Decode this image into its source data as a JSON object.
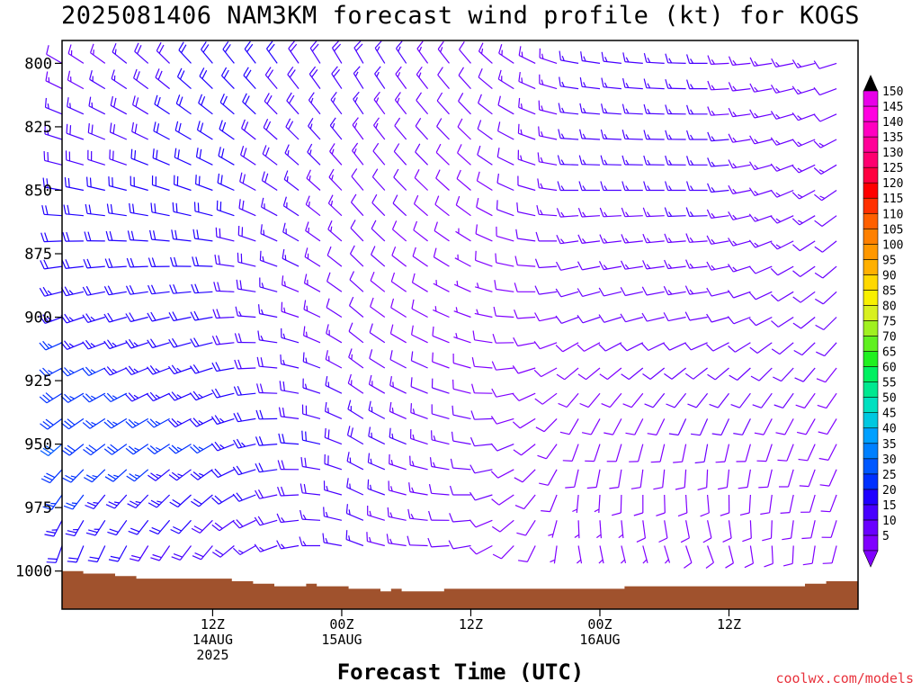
{
  "title": "2025081406 NAM3KM forecast wind profile (kt) for KOGS",
  "xlabel": "Forecast Time (UTC)",
  "credit": "coolwx.com/models",
  "chart_data": {
    "type": "wind_barb_time_height",
    "y_axis": {
      "ticks": [
        800,
        825,
        850,
        875,
        900,
        925,
        950,
        975,
        1000
      ],
      "range": [
        1015,
        791
      ],
      "unit": "hPa"
    },
    "x_axis": {
      "range_hours": [
        -8,
        66
      ],
      "ticks": [
        {
          "hour": 6,
          "lines": [
            "12Z",
            "14AUG",
            "2025"
          ]
        },
        {
          "hour": 18,
          "lines": [
            "00Z",
            "15AUG"
          ]
        },
        {
          "hour": 30,
          "lines": [
            "12Z"
          ]
        },
        {
          "hour": 42,
          "lines": [
            "00Z",
            "16AUG"
          ]
        },
        {
          "hour": 54,
          "lines": [
            "12Z"
          ]
        }
      ]
    },
    "colorbar": {
      "values": [
        5,
        10,
        15,
        20,
        25,
        30,
        35,
        40,
        45,
        50,
        55,
        60,
        65,
        70,
        75,
        80,
        85,
        90,
        95,
        100,
        105,
        110,
        115,
        120,
        125,
        130,
        135,
        140,
        145,
        150
      ],
      "colors": [
        "#8000ff",
        "#6a00ff",
        "#4800ff",
        "#2000ff",
        "#0030ff",
        "#0058ff",
        "#0080ff",
        "#00a0ff",
        "#00c8e0",
        "#00e0c0",
        "#00e890",
        "#00f060",
        "#20f020",
        "#60f020",
        "#a0f020",
        "#d8f020",
        "#f8f000",
        "#ffd800",
        "#ffb000",
        "#ff9800",
        "#ff8000",
        "#ff6000",
        "#ff3000",
        "#ff0000",
        "#ff0040",
        "#ff0070",
        "#ff0098",
        "#ff00c0",
        "#ff00e0",
        "#e800e8"
      ]
    },
    "terrain_hpa": [
      1000,
      1000,
      1001,
      1001,
      1001,
      1002,
      1002,
      1003,
      1003,
      1003,
      1003,
      1003,
      1003,
      1003,
      1003,
      1003,
      1004,
      1004,
      1005,
      1005,
      1006,
      1006,
      1006,
      1005,
      1006,
      1006,
      1006,
      1007,
      1007,
      1007,
      1008,
      1007,
      1008,
      1008,
      1008,
      1008,
      1007,
      1007,
      1007,
      1007,
      1007,
      1007,
      1007,
      1007,
      1007,
      1007,
      1007,
      1007,
      1007,
      1007,
      1007,
      1007,
      1007,
      1006,
      1006,
      1006,
      1006,
      1006,
      1006,
      1006,
      1006,
      1006,
      1006,
      1006,
      1006,
      1006,
      1006,
      1006,
      1006,
      1006,
      1005,
      1005,
      1004,
      1004,
      1004
    ],
    "terrain_color": "#a0522d",
    "wind_rows_hpa": [
      800,
      810,
      820,
      830,
      840,
      850,
      860,
      870,
      880,
      890,
      900,
      910,
      920,
      930,
      940,
      950,
      960,
      970,
      980,
      990
    ],
    "wind_cols_hour": [
      -8,
      -6,
      -4,
      -2,
      0,
      2,
      4,
      6,
      8,
      10,
      12,
      14,
      16,
      18,
      20,
      22,
      24,
      26,
      28,
      30,
      32,
      34,
      36,
      38,
      40,
      42,
      44,
      46,
      48,
      50,
      52,
      54,
      56,
      58,
      60,
      62,
      64
    ],
    "wind_keyframes": [
      {
        "hour": -8,
        "levels": [
          [
            800,
            300,
            12
          ],
          [
            850,
            280,
            20
          ],
          [
            900,
            250,
            24
          ],
          [
            950,
            230,
            30
          ],
          [
            990,
            200,
            22
          ]
        ]
      },
      {
        "hour": 6,
        "levels": [
          [
            800,
            320,
            22
          ],
          [
            850,
            290,
            22
          ],
          [
            900,
            260,
            20
          ],
          [
            950,
            240,
            25
          ],
          [
            990,
            220,
            18
          ]
        ]
      },
      {
        "hour": 20,
        "levels": [
          [
            800,
            330,
            18
          ],
          [
            850,
            320,
            12
          ],
          [
            900,
            310,
            10
          ],
          [
            950,
            300,
            18
          ],
          [
            990,
            290,
            15
          ]
        ]
      },
      {
        "hour": 30,
        "levels": [
          [
            800,
            320,
            12
          ],
          [
            850,
            310,
            8
          ],
          [
            900,
            290,
            6
          ],
          [
            950,
            280,
            12
          ],
          [
            990,
            260,
            10
          ]
        ]
      },
      {
        "hour": 40,
        "levels": [
          [
            800,
            280,
            15
          ],
          [
            850,
            270,
            15
          ],
          [
            900,
            250,
            10
          ],
          [
            950,
            200,
            8
          ],
          [
            990,
            170,
            6
          ]
        ]
      },
      {
        "hour": 52,
        "levels": [
          [
            800,
            270,
            15
          ],
          [
            850,
            270,
            16
          ],
          [
            900,
            260,
            12
          ],
          [
            950,
            190,
            10
          ],
          [
            990,
            160,
            8
          ]
        ]
      },
      {
        "hour": 66,
        "levels": [
          [
            800,
            250,
            12
          ],
          [
            850,
            230,
            12
          ],
          [
            900,
            220,
            10
          ],
          [
            950,
            210,
            9
          ],
          [
            990,
            200,
            8
          ]
        ]
      }
    ]
  }
}
